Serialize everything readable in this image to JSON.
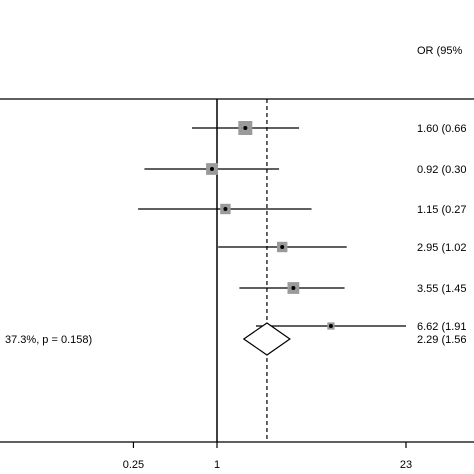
{
  "chart_data": {
    "type": "forest",
    "column_header": "OR (95%",
    "x_scale": "log",
    "x_ticks": [
      {
        "value": 0.25,
        "label": "0.25"
      },
      {
        "value": 1,
        "label": "1"
      },
      {
        "value": 23,
        "label": "23"
      }
    ],
    "null_line": 1,
    "pooled_line": 2.29,
    "studies": [
      {
        "or": 1.6,
        "lo": 0.66,
        "hi": 3.9,
        "weight": 1.0,
        "label": "1.60 (0.66"
      },
      {
        "or": 0.92,
        "lo": 0.3,
        "hi": 2.8,
        "weight": 0.75,
        "label": "0.92 (0.30"
      },
      {
        "or": 1.15,
        "lo": 0.27,
        "hi": 4.8,
        "weight": 0.6,
        "label": "1.15 (0.27"
      },
      {
        "or": 2.95,
        "lo": 1.02,
        "hi": 8.6,
        "weight": 0.6,
        "label": "2.95 (1.02"
      },
      {
        "or": 3.55,
        "lo": 1.45,
        "hi": 8.3,
        "weight": 0.75,
        "label": "3.55 (1.45"
      },
      {
        "or": 6.62,
        "lo": 1.91,
        "hi": 23,
        "weight": 0.25,
        "label": "6.62 (1.91"
      }
    ],
    "overall": {
      "or": 2.29,
      "lo": 1.56,
      "hi": 3.35,
      "label": "2.29 (1.56",
      "heterogeneity_label": "37.3%, p = 0.158)"
    }
  }
}
